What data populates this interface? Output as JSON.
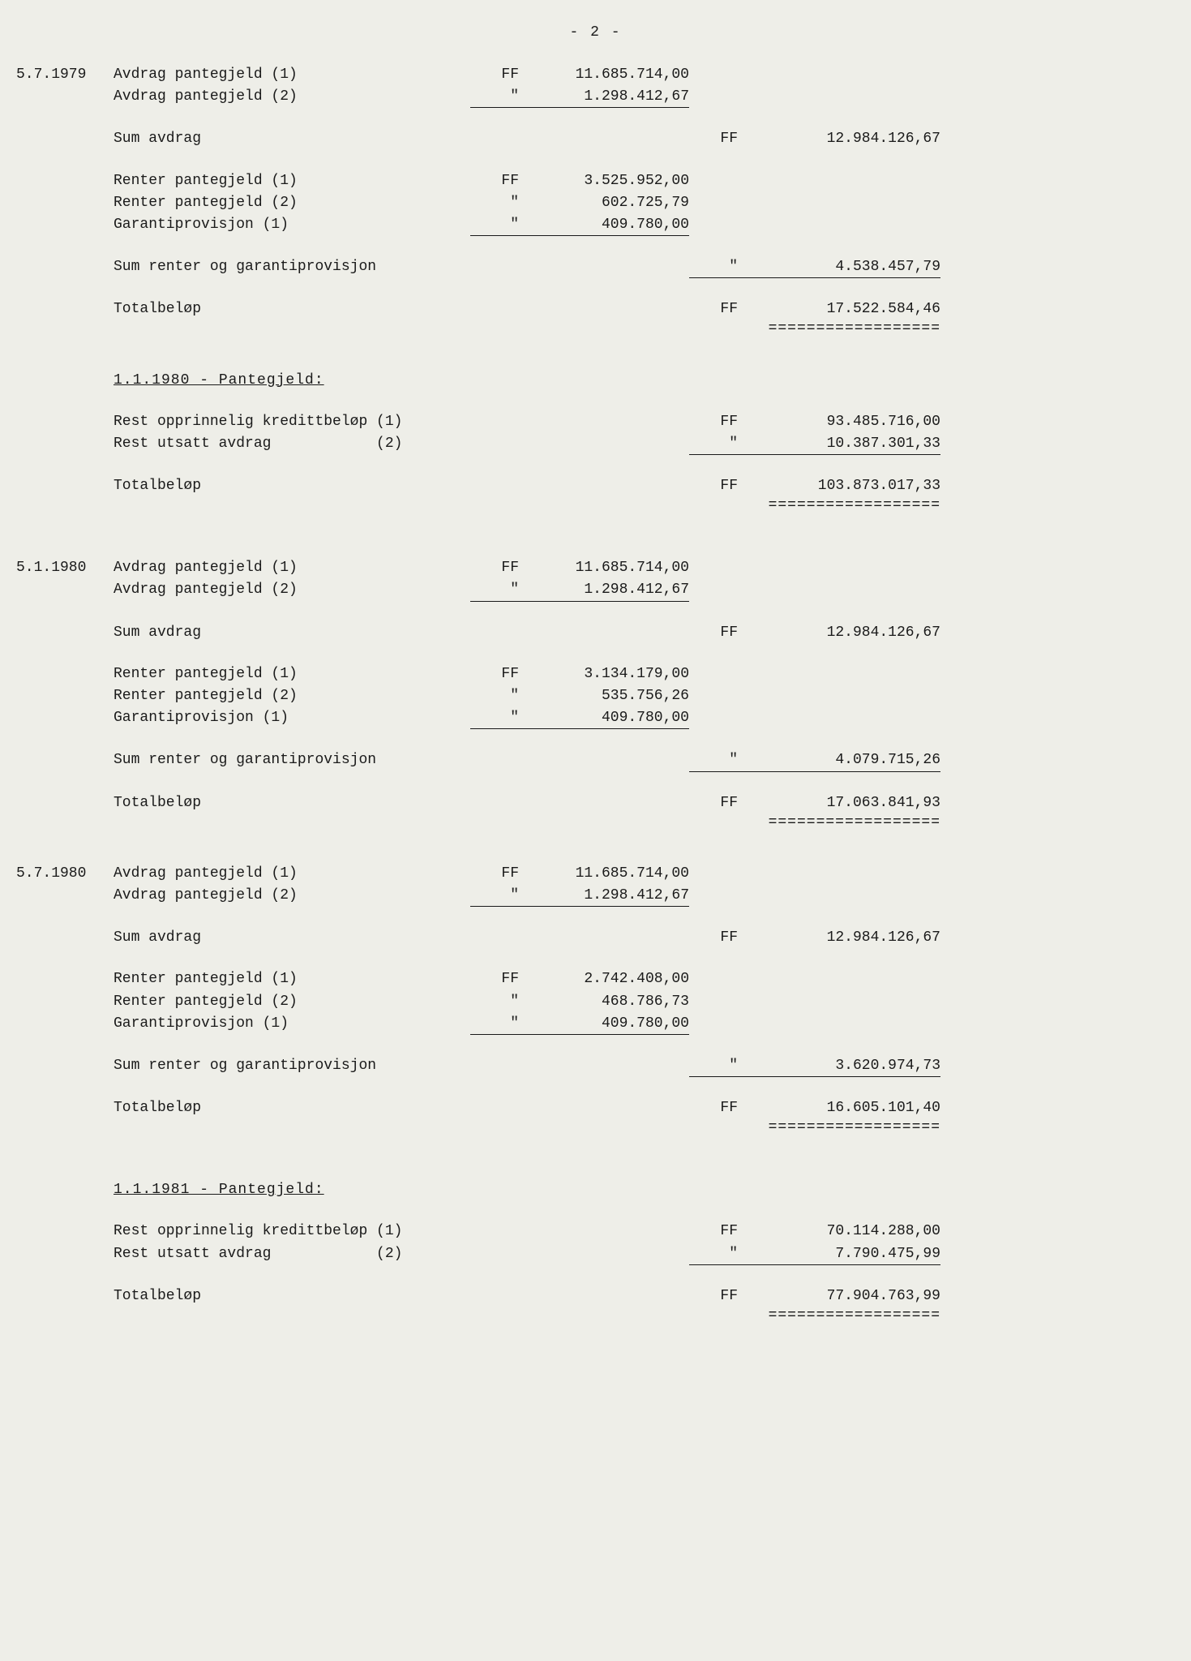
{
  "page_number": "- 2 -",
  "sections": [
    {
      "date": "5.7.1979",
      "items": [
        {
          "desc": "Avdrag pantegjeld (1)",
          "cur1": "FF",
          "amt1": "11.685.714,00"
        },
        {
          "desc": "Avdrag pantegjeld (2)",
          "cur1": "\"",
          "amt1": "1.298.412,67",
          "underline1": true
        }
      ],
      "sum": {
        "desc": "Sum avdrag",
        "cur2": "FF",
        "amt2": "12.984.126,67"
      },
      "items2": [
        {
          "desc": "Renter pantegjeld (1)",
          "cur1": "FF",
          "amt1": "3.525.952,00"
        },
        {
          "desc": "Renter pantegjeld (2)",
          "cur1": "\"",
          "amt1": "602.725,79"
        },
        {
          "desc": "Garantiprovisjon  (1)",
          "cur1": "\"",
          "amt1": "409.780,00",
          "underline1": true
        }
      ],
      "sum2": {
        "desc": "Sum renter og garantiprovisjon",
        "cur2": "\"",
        "amt2": "4.538.457,79",
        "underline2": true
      },
      "total": {
        "desc": "Totalbeløp",
        "cur2": "FF",
        "amt2": "17.522.584,46",
        "double": true
      }
    }
  ],
  "header1": "1.1.1980 - Pantegjeld:",
  "block1": {
    "items": [
      {
        "desc": "Rest opprinnelig kredittbeløp (1)",
        "cur2": "FF",
        "amt2": "93.485.716,00"
      },
      {
        "desc": "Rest utsatt avdrag            (2)",
        "cur2": "\"",
        "amt2": "10.387.301,33",
        "underline2": true
      }
    ],
    "total": {
      "desc": "Totalbeløp",
      "cur2": "FF",
      "amt2": "103.873.017,33",
      "double": true
    }
  },
  "section2": {
    "date": "5.1.1980",
    "items": [
      {
        "desc": "Avdrag pantegjeld (1)",
        "cur1": "FF",
        "amt1": "11.685.714,00"
      },
      {
        "desc": "Avdrag pantegjeld (2)",
        "cur1": "\"",
        "amt1": "1.298.412,67",
        "underline1": true
      }
    ],
    "sum": {
      "desc": "Sum avdrag",
      "cur2": "FF",
      "amt2": "12.984.126,67"
    },
    "items2": [
      {
        "desc": "Renter pantegjeld (1)",
        "cur1": "FF",
        "amt1": "3.134.179,00"
      },
      {
        "desc": "Renter pantegjeld (2)",
        "cur1": "\"",
        "amt1": "535.756,26"
      },
      {
        "desc": "Garantiprovisjon  (1)",
        "cur1": "\"",
        "amt1": "409.780,00",
        "underline1": true
      }
    ],
    "sum2": {
      "desc": "Sum renter og garantiprovisjon",
      "cur2": "\"",
      "amt2": "4.079.715,26",
      "underline2": true
    },
    "total": {
      "desc": "Totalbeløp",
      "cur2": "FF",
      "amt2": "17.063.841,93",
      "double": true
    }
  },
  "section3": {
    "date": "5.7.1980",
    "items": [
      {
        "desc": "Avdrag pantegjeld (1)",
        "cur1": "FF",
        "amt1": "11.685.714,00"
      },
      {
        "desc": "Avdrag pantegjeld (2)",
        "cur1": "\"",
        "amt1": "1.298.412,67",
        "underline1": true
      }
    ],
    "sum": {
      "desc": "Sum avdrag",
      "cur2": "FF",
      "amt2": "12.984.126,67"
    },
    "items2": [
      {
        "desc": "Renter pantegjeld (1)",
        "cur1": "FF",
        "amt1": "2.742.408,00"
      },
      {
        "desc": "Renter pantegjeld (2)",
        "cur1": "\"",
        "amt1": "468.786,73"
      },
      {
        "desc": "Garantiprovisjon  (1)",
        "cur1": "\"",
        "amt1": "409.780,00",
        "underline1": true
      }
    ],
    "sum2": {
      "desc": "Sum renter og garantiprovisjon",
      "cur2": "\"",
      "amt2": "3.620.974,73",
      "underline2": true
    },
    "total": {
      "desc": "Totalbeløp",
      "cur2": "FF",
      "amt2": "16.605.101,40",
      "double": true
    }
  },
  "header2": "1.1.1981 - Pantegjeld:",
  "block2": {
    "items": [
      {
        "desc": "Rest opprinnelig kredittbeløp (1)",
        "cur2": "FF",
        "amt2": "70.114.288,00"
      },
      {
        "desc": "Rest utsatt avdrag            (2)",
        "cur2": "\"",
        "amt2": "7.790.475,99",
        "underline2": true
      }
    ],
    "total": {
      "desc": "Totalbeløp",
      "cur2": "FF",
      "amt2": "77.904.763,99",
      "double": true
    }
  }
}
